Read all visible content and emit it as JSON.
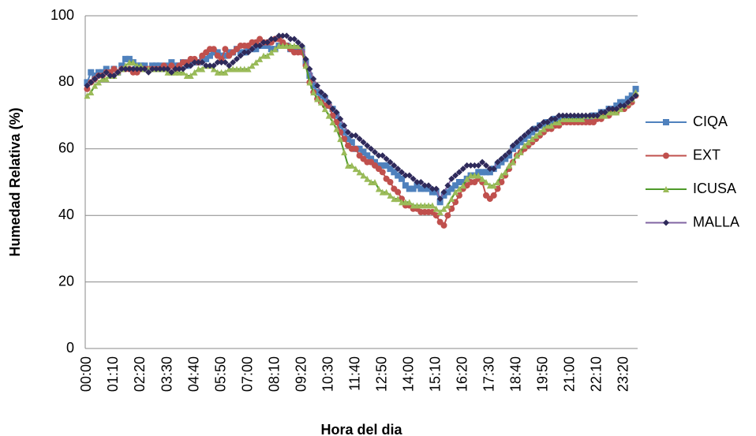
{
  "chart_data": {
    "type": "line",
    "y_label": "Humedad Relativa (%)",
    "x_label": "Hora del dia",
    "categories": [
      "00:00",
      null,
      null,
      null,
      null,
      null,
      null,
      "01:10",
      null,
      null,
      null,
      null,
      null,
      null,
      "02:20",
      null,
      null,
      null,
      null,
      null,
      null,
      "03:30",
      null,
      null,
      null,
      null,
      null,
      null,
      "04:40",
      null,
      null,
      null,
      null,
      null,
      null,
      "05:50",
      null,
      null,
      null,
      null,
      null,
      null,
      "07:00",
      null,
      null,
      null,
      null,
      null,
      null,
      "08:10",
      null,
      null,
      null,
      null,
      null,
      null,
      "09:20",
      null,
      null,
      null,
      null,
      null,
      null,
      "10:30",
      null,
      null,
      null,
      null,
      null,
      null,
      "11:40",
      null,
      null,
      null,
      null,
      null,
      null,
      "12:50",
      null,
      null,
      null,
      null,
      null,
      null,
      "14:00",
      null,
      null,
      null,
      null,
      null,
      null,
      "15:10",
      null,
      null,
      null,
      null,
      null,
      null,
      "16:20",
      null,
      null,
      null,
      null,
      null,
      null,
      "17:30",
      null,
      null,
      null,
      null,
      null,
      null,
      "18:40",
      null,
      null,
      null,
      null,
      null,
      null,
      "19:50",
      null,
      null,
      null,
      null,
      null,
      null,
      "21:00",
      null,
      null,
      null,
      null,
      null,
      null,
      "22:10",
      null,
      null,
      null,
      null,
      null,
      null,
      "23:20",
      null,
      null,
      null
    ],
    "series": [
      {
        "name": "CIQA",
        "color": "#4f81bd",
        "marker": "square",
        "values": [
          80,
          83,
          82,
          83,
          83,
          84,
          83,
          84,
          83,
          85,
          87,
          87,
          86,
          85,
          85,
          85,
          84,
          85,
          85,
          85,
          84,
          85,
          86,
          85,
          85,
          86,
          85,
          86,
          86,
          86,
          87,
          87,
          88,
          89,
          89,
          88,
          88,
          89,
          89,
          90,
          89,
          89,
          90,
          90,
          90,
          91,
          91,
          91,
          90,
          90,
          91,
          91,
          91,
          90,
          90,
          90,
          90,
          86,
          82,
          79,
          77,
          76,
          75,
          73,
          72,
          70,
          67,
          65,
          63,
          62,
          60,
          60,
          59,
          58,
          57,
          56,
          55,
          55,
          55,
          54,
          53,
          52,
          51,
          49,
          48,
          48,
          49,
          48,
          48,
          48,
          47,
          47,
          44,
          46,
          47,
          48,
          49,
          50,
          50,
          51,
          52,
          52,
          53,
          53,
          53,
          53,
          54,
          55,
          56,
          57,
          58,
          60,
          61,
          62,
          63,
          64,
          65,
          66,
          67,
          67,
          68,
          68,
          69,
          69,
          69,
          69,
          69,
          69,
          69,
          69,
          69,
          69,
          70,
          70,
          71,
          71,
          72,
          72,
          73,
          74,
          74,
          75,
          76,
          78
        ]
      },
      {
        "name": "EXT",
        "color": "#c0504d",
        "marker": "circle",
        "values": [
          78,
          80,
          81,
          82,
          82,
          83,
          83,
          84,
          83,
          84,
          84,
          84,
          83,
          83,
          84,
          84,
          84,
          84,
          84,
          84,
          85,
          84,
          85,
          84,
          85,
          86,
          86,
          87,
          87,
          86,
          88,
          89,
          90,
          90,
          88,
          87,
          90,
          88,
          89,
          90,
          91,
          91,
          91,
          92,
          92,
          93,
          92,
          92,
          92,
          93,
          93,
          92,
          91,
          90,
          89,
          89,
          89,
          85,
          80,
          77,
          75,
          74,
          73,
          73,
          70,
          68,
          65,
          63,
          61,
          60,
          60,
          58,
          57,
          56,
          56,
          55,
          54,
          53,
          51,
          50,
          48,
          47,
          45,
          43,
          43,
          42,
          42,
          41,
          41,
          41,
          41,
          40,
          38,
          37,
          40,
          42,
          44,
          46,
          48,
          49,
          50,
          50,
          51,
          50,
          46,
          45,
          46,
          48,
          50,
          52,
          54,
          56,
          58,
          59,
          60,
          61,
          62,
          63,
          64,
          65,
          66,
          66,
          67,
          67,
          68,
          68,
          68,
          68,
          68,
          68,
          68,
          68,
          68,
          69,
          69,
          70,
          70,
          71,
          71,
          72,
          72,
          73,
          74,
          76
        ]
      },
      {
        "name": "ICUSA",
        "color": "#9bbb59",
        "line_color": "#4e9a2a",
        "marker": "triangle",
        "values": [
          76,
          77,
          79,
          80,
          81,
          81,
          82,
          82,
          83,
          84,
          85,
          86,
          86,
          85,
          85,
          84,
          84,
          84,
          84,
          84,
          84,
          83,
          83,
          83,
          83,
          83,
          82,
          82,
          83,
          84,
          84,
          85,
          85,
          84,
          83,
          83,
          83,
          84,
          84,
          84,
          84,
          84,
          84,
          85,
          86,
          87,
          88,
          88,
          89,
          90,
          91,
          91,
          91,
          91,
          91,
          91,
          91,
          85,
          80,
          77,
          75,
          74,
          72,
          70,
          68,
          66,
          63,
          59,
          55,
          55,
          54,
          53,
          52,
          51,
          50,
          50,
          48,
          47,
          47,
          46,
          45,
          45,
          44,
          44,
          44,
          43,
          43,
          43,
          43,
          43,
          43,
          42,
          41,
          42,
          43,
          45,
          47,
          48,
          49,
          51,
          52,
          52,
          52,
          51,
          50,
          49,
          49,
          50,
          52,
          53,
          55,
          56,
          58,
          59,
          61,
          62,
          63,
          64,
          65,
          66,
          67,
          67,
          68,
          68,
          69,
          69,
          69,
          69,
          69,
          69,
          70,
          70,
          70,
          70,
          70,
          70,
          71,
          71,
          71,
          72,
          73,
          74,
          75,
          77
        ]
      },
      {
        "name": "MALLA",
        "color": "#2e2a5a",
        "line_color": "#8064a2",
        "marker": "diamond",
        "values": [
          79,
          80,
          81,
          82,
          82,
          83,
          82,
          82,
          83,
          84,
          84,
          84,
          84,
          84,
          84,
          84,
          83,
          84,
          84,
          84,
          84,
          84,
          83,
          84,
          84,
          84,
          85,
          85,
          86,
          86,
          86,
          85,
          85,
          85,
          86,
          86,
          86,
          85,
          86,
          87,
          88,
          89,
          89,
          90,
          91,
          91,
          92,
          92,
          93,
          93,
          94,
          94,
          94,
          93,
          93,
          92,
          91,
          87,
          84,
          81,
          79,
          77,
          76,
          74,
          72,
          71,
          69,
          67,
          65,
          64,
          64,
          63,
          62,
          61,
          60,
          59,
          58,
          58,
          57,
          56,
          55,
          54,
          53,
          52,
          52,
          51,
          50,
          50,
          49,
          49,
          48,
          48,
          45,
          47,
          49,
          51,
          52,
          53,
          54,
          55,
          55,
          55,
          55,
          56,
          55,
          54,
          54,
          56,
          57,
          58,
          59,
          61,
          62,
          63,
          64,
          65,
          66,
          66,
          67,
          68,
          68,
          69,
          69,
          70,
          70,
          70,
          70,
          70,
          70,
          70,
          70,
          70,
          70,
          70,
          71,
          71,
          72,
          72,
          72,
          73,
          73,
          74,
          75,
          76
        ]
      }
    ],
    "ylim": [
      0,
      100
    ],
    "yticks": [
      0,
      20,
      40,
      60,
      80,
      100
    ],
    "grid": true,
    "legend": "right"
  }
}
